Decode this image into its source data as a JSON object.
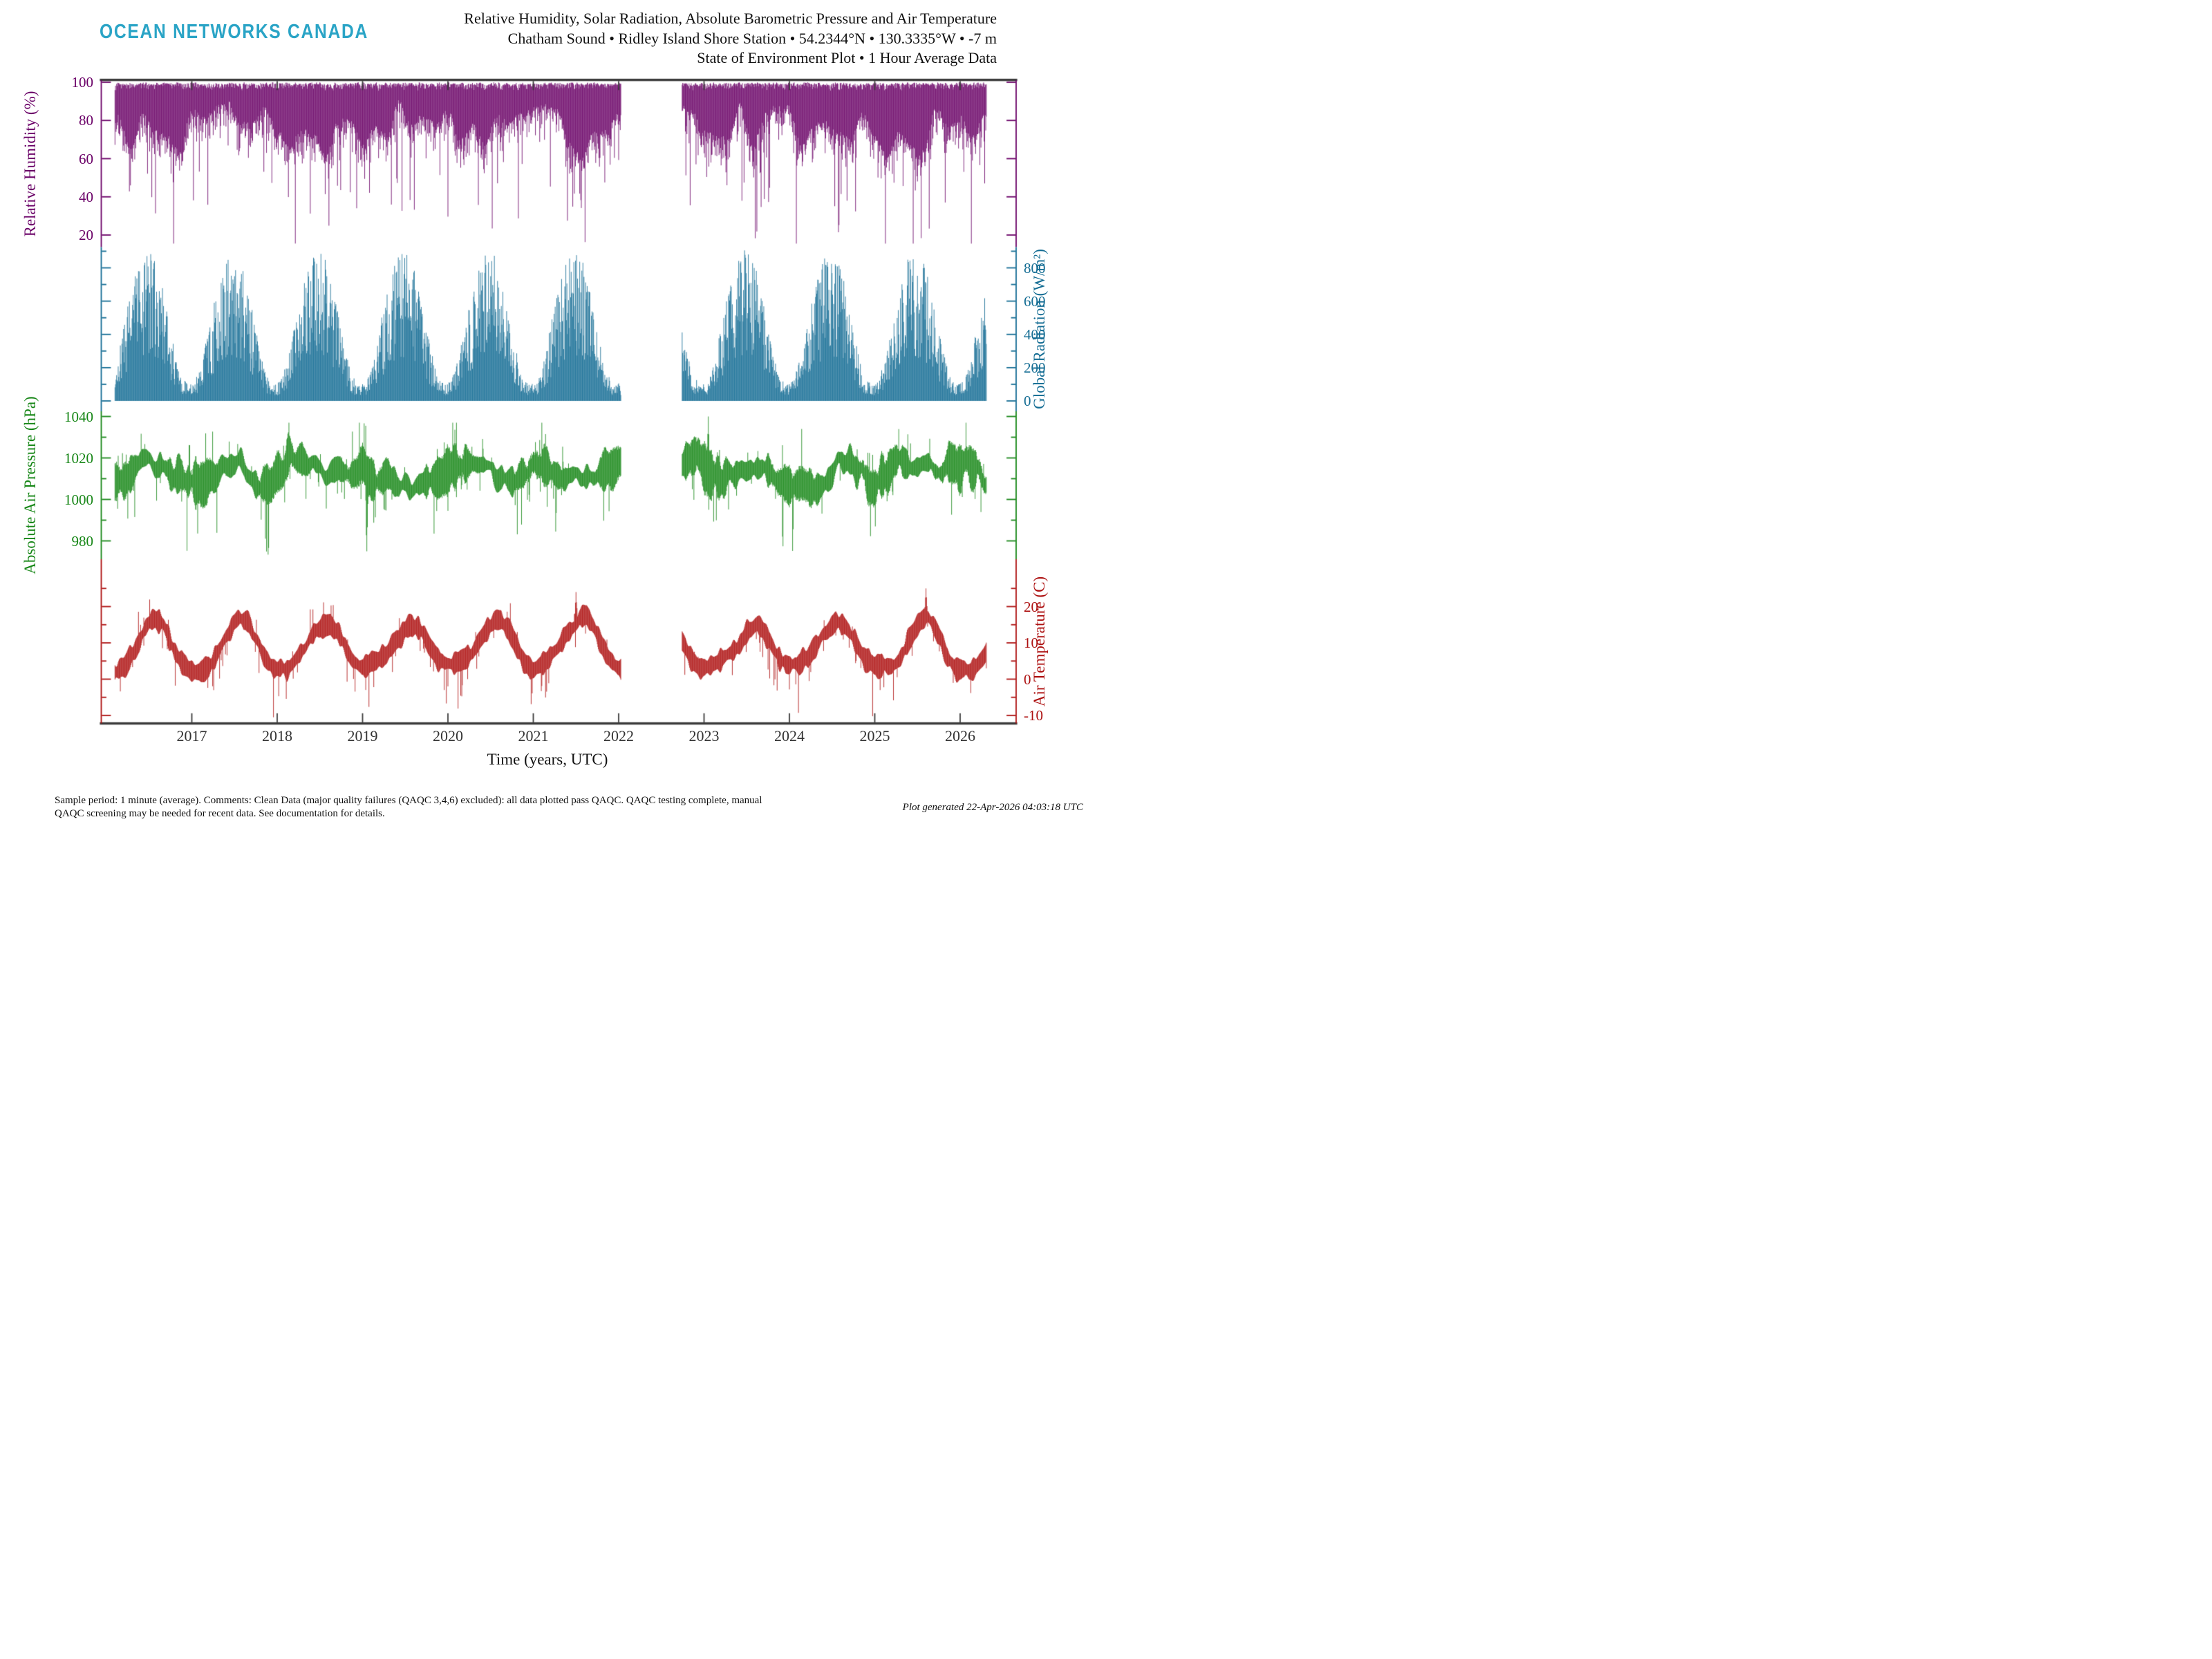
{
  "header": {
    "logo": "OCEAN NETWORKS CANADA",
    "logo_color": "#2AA4C6",
    "title_lines": [
      "Relative Humidity, Solar Radiation, Absolute Barometric Pressure and Air Temperature",
      "Chatham Sound • Ridley Island Shore Station • 54.2344°N • 130.3335°W • -7 m",
      "State of Environment Plot • 1 Hour Average Data"
    ]
  },
  "footer": {
    "left_lines": [
      "Sample period: 1 minute (average). Comments: Clean Data (major quality failures (QAQC 3,4,6) excluded): all data plotted pass QAQC. QAQC testing complete, manual",
      "QAQC screening may be needed for recent data. See documentation for details."
    ],
    "generated": "Plot generated 22-Apr-2026 04:03:18 UTC"
  },
  "chart_data": {
    "type": "line",
    "x_axis": {
      "label": "Time (years, UTC)",
      "tick_years": [
        2017,
        2018,
        2019,
        2020,
        2021,
        2022,
        2023,
        2024,
        2025,
        2026
      ],
      "range_years": [
        2015.94,
        2026.66
      ],
      "data_start": 2016.1,
      "data_end": 2026.31,
      "data_gap": [
        2022.03,
        2022.74
      ],
      "axis_color": "#3A3A3A"
    },
    "panels": [
      {
        "name": "Relative Humidity",
        "ylabel": "Relative Humidity (%)",
        "units": "%",
        "color": "#6A0067",
        "side": "left",
        "yticks": [
          100,
          80,
          60,
          40,
          20
        ],
        "minor_yticks": [],
        "ylim": [
          13.7,
          101.1
        ],
        "synthesis": {
          "ceiling": 100,
          "band_depth": [
            8,
            38
          ],
          "fast_depth": 18,
          "deep_spike_prob": 0.09,
          "deep_spike_extra": 45,
          "min_value": 15.5
        },
        "notable_events": []
      },
      {
        "name": "Global Radiation",
        "ylabel": "Global Radiation (W/m²)",
        "units": "W/m²",
        "color": "#136C93",
        "side": "right",
        "yticks": [
          800,
          600,
          400,
          200,
          0
        ],
        "minor_yticks": [
          900,
          700,
          500,
          300,
          100
        ],
        "ylim": [
          -62,
          924
        ],
        "synthesis": {
          "baseline": 0,
          "monthly_peak": [
            110,
            230,
            420,
            600,
            750,
            820,
            800,
            690,
            500,
            290,
            140,
            85
          ],
          "observed_max": 900
        },
        "notable_events": []
      },
      {
        "name": "Absolute Air Pressure",
        "ylabel": "Absolute Air Pressure (hPa)",
        "units": "hPa",
        "color": "#168616",
        "side": "left",
        "yticks": [
          1040,
          1020,
          1000,
          980
        ],
        "minor_yticks": [
          1030,
          1010,
          990
        ],
        "ylim": [
          971.2,
          1042.5
        ],
        "synthesis": {
          "mean": 1013,
          "slow_range": 16,
          "band_halfwidth": [
            2,
            9
          ],
          "low_extreme": 972.5,
          "high_extreme": 1037,
          "winter_spike_prob": 0.09
        },
        "notable_events": [
          {
            "t": 2023.05,
            "value": 1040
          },
          {
            "t": 2019.05,
            "value": 975
          }
        ]
      },
      {
        "name": "Air Temperature",
        "ylabel": "Air Temperature (C)",
        "units": "C",
        "color": "#AD1010",
        "side": "right",
        "yticks": [
          20,
          10,
          0,
          -10
        ],
        "minor_yticks": [
          25,
          15,
          5,
          -5
        ],
        "ylim": [
          -12.2,
          33.1
        ],
        "synthesis": {
          "monthly_mean": [
            3,
            3.5,
            5,
            7.5,
            10.5,
            13,
            15,
            15.5,
            13,
            9,
            5.5,
            3
          ],
          "band_halfwidth": [
            1.3,
            3.5
          ],
          "winter_low": -10.5,
          "summer_high": 25,
          "winter_spike_prob": 0.09
        },
        "notable_events": [
          {
            "t": 2021.5,
            "value": 24
          },
          {
            "t": 2025.6,
            "value": 25
          }
        ]
      }
    ]
  }
}
